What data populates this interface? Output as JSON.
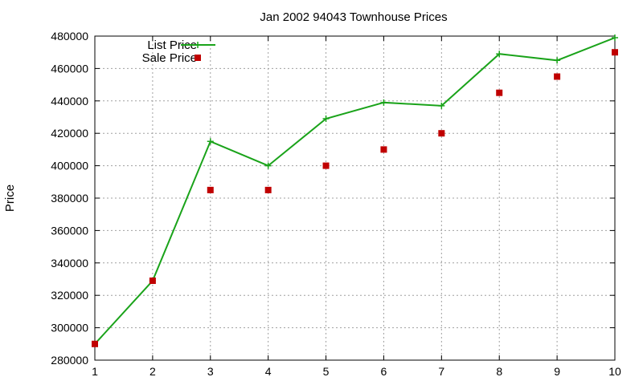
{
  "chart_data": {
    "type": "line",
    "title": "Jan 2002 94043 Townhouse Prices",
    "xlabel": "",
    "ylabel": "Price",
    "x": [
      1,
      2,
      3,
      4,
      5,
      6,
      7,
      8,
      9,
      10
    ],
    "xlim": [
      1,
      10
    ],
    "ylim": [
      280000,
      480000
    ],
    "xticks": [
      1,
      2,
      3,
      4,
      5,
      6,
      7,
      8,
      9,
      10
    ],
    "yticks": [
      280000,
      300000,
      320000,
      340000,
      360000,
      380000,
      400000,
      420000,
      440000,
      460000,
      480000
    ],
    "grid": true,
    "legend_position": "top-left",
    "series": [
      {
        "name": "List Price",
        "style": "linespoints",
        "marker": "plus",
        "color": "#1aa31a",
        "values": [
          290000,
          329000,
          415000,
          400000,
          429000,
          439000,
          437000,
          469000,
          465000,
          479000
        ]
      },
      {
        "name": "Sale Price",
        "style": "points",
        "marker": "square",
        "color": "#c00000",
        "values": [
          290000,
          329000,
          385000,
          385000,
          400000,
          410000,
          420000,
          445000,
          455000,
          470000
        ]
      }
    ]
  }
}
